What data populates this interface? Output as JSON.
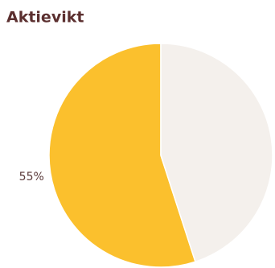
{
  "chart_data": {
    "type": "pie",
    "title": "Aktievikt",
    "values": [
      55,
      45
    ],
    "value_labels": [
      "55%",
      null
    ],
    "colors": [
      "#fbc02d",
      "#f4f0ec"
    ]
  }
}
